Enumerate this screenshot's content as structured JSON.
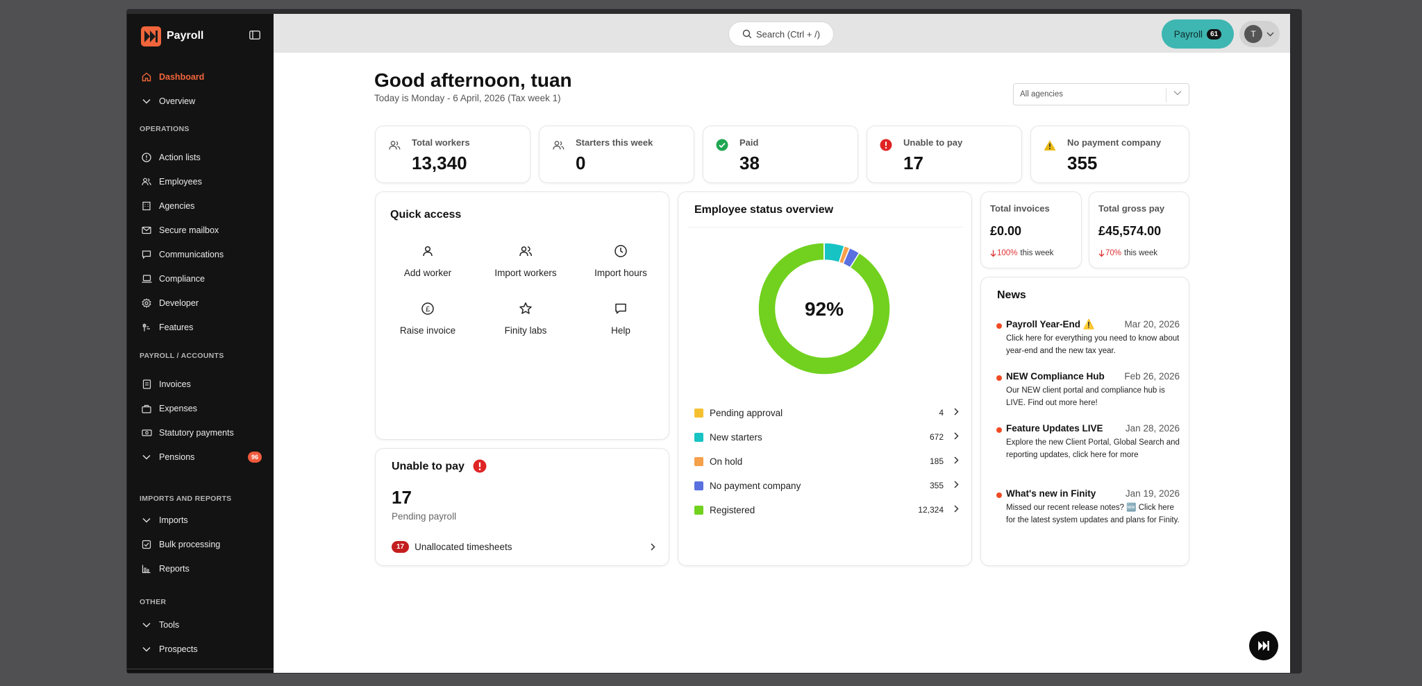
{
  "app": {
    "name": "Payroll"
  },
  "sidebar": {
    "items": [
      {
        "label": "Dashboard",
        "icon": "home-icon"
      },
      {
        "label": "Overview",
        "icon": "chevron-down-icon"
      }
    ],
    "sections": [
      {
        "title": "OPERATIONS",
        "items": [
          "Action lists",
          "Employees",
          "Agencies",
          "Secure mailbox",
          "Communications",
          "Compliance",
          "Developer",
          "Features"
        ]
      },
      {
        "title": "PAYROLL / ACCOUNTS",
        "items": [
          "Invoices",
          "Expenses",
          "Statutory payments",
          "Pensions"
        ]
      },
      {
        "title": "IMPORTS AND REPORTS",
        "items": [
          "Imports",
          "Bulk processing",
          "Reports"
        ]
      },
      {
        "title": "OTHER",
        "items": [
          "Tools",
          "Prospects"
        ]
      }
    ],
    "pensions_badge": "96"
  },
  "topbar": {
    "search_label": "Search (Ctrl + /)",
    "payroll_label": "Payroll",
    "payroll_count": "61",
    "user_initial": "T"
  },
  "header": {
    "greeting": "Good afternoon, tuan",
    "date_line": "Today is Monday - 6 April, 2026 (Tax week 1)",
    "agency_filter": "All agencies"
  },
  "stats": [
    {
      "label": "Total workers",
      "value": "13,340",
      "icon": "users-icon"
    },
    {
      "label": "Starters this week",
      "value": "0",
      "icon": "users-icon"
    },
    {
      "label": "Paid",
      "value": "38",
      "icon": "check-circle-icon",
      "color": "#1fa651"
    },
    {
      "label": "Unable to pay",
      "value": "17",
      "icon": "alert-circle-icon",
      "color": "#e02424"
    },
    {
      "label": "No payment company",
      "value": "355",
      "icon": "warning-triangle-icon",
      "color": "#e8b810"
    }
  ],
  "quick_access": {
    "title": "Quick access",
    "items": [
      {
        "label": "Add worker",
        "icon": "user-icon"
      },
      {
        "label": "Import workers",
        "icon": "users-icon"
      },
      {
        "label": "Import hours",
        "icon": "clock-icon"
      },
      {
        "label": "Raise invoice",
        "icon": "pound-icon"
      },
      {
        "label": "Finity labs",
        "icon": "star-icon"
      },
      {
        "label": "Help",
        "icon": "chat-icon"
      }
    ]
  },
  "unable_to_pay": {
    "title": "Unable to pay",
    "value": "17",
    "caption": "Pending payroll",
    "link_badge": "17",
    "link_label": "Unallocated timesheets"
  },
  "employee_status": {
    "title": "Employee status overview",
    "center_label": "92%",
    "rows": [
      {
        "label": "Pending approval",
        "count": "4",
        "value": 4,
        "color": "#f5c030"
      },
      {
        "label": "New starters",
        "count": "672",
        "value": 672,
        "color": "#17c3c3"
      },
      {
        "label": "On hold",
        "count": "185",
        "value": 185,
        "color": "#f5a04a"
      },
      {
        "label": "No payment company",
        "count": "355",
        "value": 355,
        "color": "#5a70e0"
      },
      {
        "label": "Registered",
        "count": "12,324",
        "value": 12324,
        "color": "#71d11e"
      }
    ]
  },
  "totals": [
    {
      "label": "Total invoices",
      "value": "£0.00",
      "change": "100%",
      "period": "this week"
    },
    {
      "label": "Total gross pay",
      "value": "£45,574.00",
      "change": "70%",
      "period": "this week"
    }
  ],
  "news": {
    "title": "News",
    "items": [
      {
        "title": "Payroll Year-End ⚠️",
        "date": "Mar 20, 2026",
        "body": "Click here for everything you need to know about year-end and the new tax year."
      },
      {
        "title": "NEW Compliance Hub",
        "date": "Feb 26, 2026",
        "body": "Our NEW client portal and compliance hub is LIVE. Find out more here!"
      },
      {
        "title": "Feature Updates LIVE",
        "date": "Jan 28, 2026",
        "body": "Explore the new Client Portal, Global Search and reporting updates, click here for more"
      },
      {
        "title": "What's new in Finity",
        "date": "Jan 19, 2026",
        "body": "Missed our recent release notes? 🆕 Click here for the latest system updates and plans for Finity."
      }
    ]
  }
}
